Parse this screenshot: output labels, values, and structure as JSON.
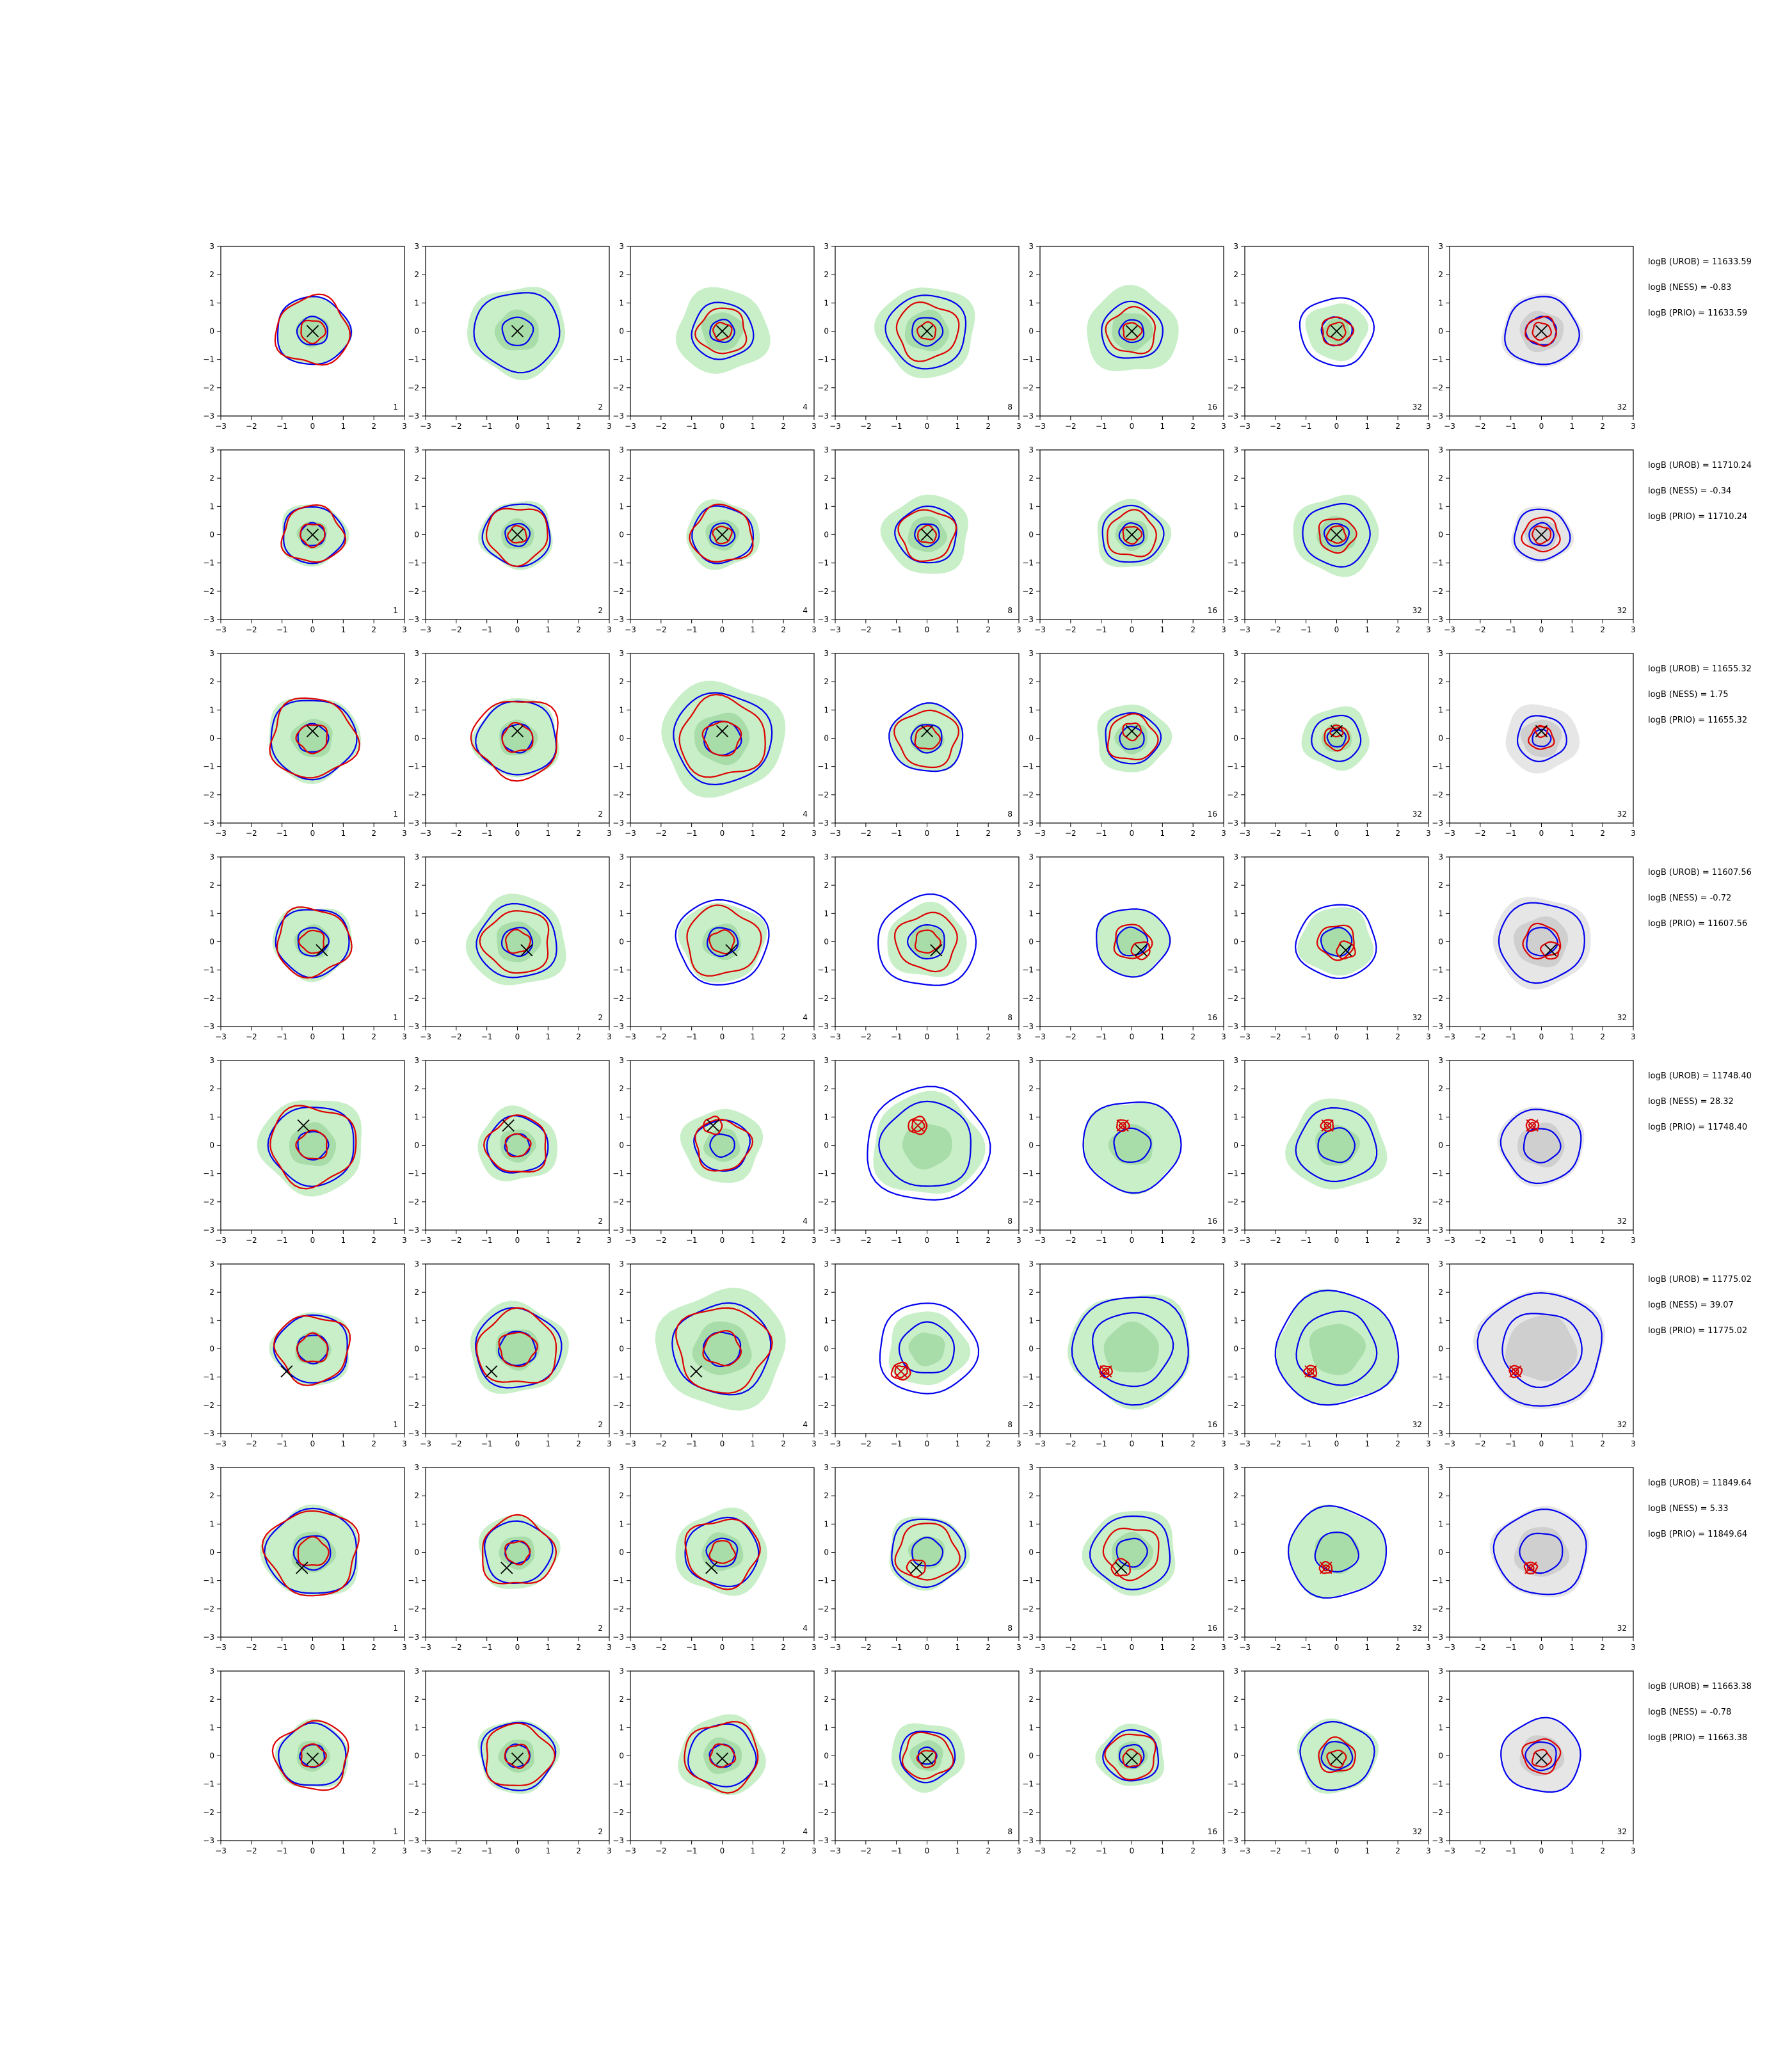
{
  "colors": {
    "fill_green": "#c8efc8",
    "fill_green_dark": "#a8dca8",
    "fill_gray": "#e6e6e6",
    "fill_gray_dark": "#cfcfcf",
    "contour_blue": "#0000ee",
    "contour_red": "#dd0000",
    "marker": "#000000",
    "marker_red": "#cc0000"
  },
  "chart_data": {
    "type": "contour-grid",
    "rows": 8,
    "cols": 7,
    "column_labels": [
      "1",
      "2",
      "4",
      "8",
      "16",
      "32",
      "32"
    ],
    "xlim": [
      -3,
      3
    ],
    "ylim": [
      -3,
      3
    ],
    "ticks": [
      -3,
      -2,
      -1,
      0,
      1,
      2,
      3
    ],
    "grid": false,
    "rows_data": [
      {
        "annotations": [
          "logB (UROB) = 11633.59",
          "logB (NESS) = -0.83",
          "logB (PRIO) = 11633.59"
        ],
        "marker": [
          0.0,
          0.0
        ],
        "panels": [
          {
            "green": 1.2,
            "blue": [
              1.2,
              0.5
            ],
            "red": [
              1.2,
              0.4
            ]
          },
          {
            "green": 1.6,
            "blue": [
              1.4,
              0.5
            ],
            "red": []
          },
          {
            "green": 1.5,
            "blue": [
              1.0,
              0.4
            ],
            "red": [
              0.8,
              0.3
            ]
          },
          {
            "green": 1.6,
            "blue": [
              1.3,
              0.5
            ],
            "red": [
              1.0,
              0.3
            ]
          },
          {
            "green": 1.5,
            "blue": [
              1.0,
              0.4
            ],
            "red": [
              0.8,
              0.3
            ]
          },
          {
            "green": 1.0,
            "blue": [
              1.2,
              0.5
            ],
            "red": [
              0.5,
              0.3
            ]
          },
          {
            "gray": 1.3,
            "blue": [
              1.2,
              0.5
            ],
            "red": [
              0.5,
              0.3
            ]
          }
        ]
      },
      {
        "annotations": [
          "logB (UROB) = 11710.24",
          "logB (NESS) = -0.34",
          "logB (PRIO) = 11710.24"
        ],
        "marker": [
          0.0,
          0.0
        ],
        "panels": [
          {
            "green": 1.1,
            "blue": [
              1.0,
              0.4
            ],
            "red": [
              1.0,
              0.4
            ]
          },
          {
            "green": 1.2,
            "blue": [
              1.1,
              0.4
            ],
            "red": [
              1.0,
              0.3
            ]
          },
          {
            "green": 1.2,
            "blue": [
              1.0,
              0.4
            ],
            "red": [
              1.0,
              0.3
            ]
          },
          {
            "green": 1.4,
            "blue": [
              1.0,
              0.4
            ],
            "red": [
              0.9,
              0.3
            ]
          },
          {
            "green": 1.2,
            "blue": [
              1.0,
              0.4
            ],
            "red": [
              0.8,
              0.3
            ]
          },
          {
            "green": 1.4,
            "blue": [
              1.1,
              0.4
            ],
            "red": [
              0.6,
              0.3
            ]
          },
          {
            "gray": 1.0,
            "blue": [
              0.9,
              0.4
            ],
            "red": [
              0.6,
              0.3
            ]
          }
        ]
      },
      {
        "annotations": [
          "logB (UROB) = 11655.32",
          "logB (NESS) = 1.75",
          "logB (PRIO) = 11655.32"
        ],
        "marker": [
          0.0,
          0.25
        ],
        "panels": [
          {
            "green": 1.5,
            "blue": [
              1.4,
              0.5
            ],
            "red": [
              1.4,
              0.5
            ]
          },
          {
            "green": 1.4,
            "blue": [
              1.3,
              0.5
            ],
            "red": [
              1.4,
              0.5
            ]
          },
          {
            "green": 2.0,
            "blue": [
              1.6,
              0.6
            ],
            "red": [
              1.4,
              0.6
            ]
          },
          {
            "green": 1.2,
            "blue": [
              1.2,
              0.5
            ],
            "red": [
              1.0,
              0.4
            ]
          },
          {
            "green": 1.2,
            "blue": [
              0.9,
              0.4
            ],
            "red": [
              0.8,
              0.3
            ]
          },
          {
            "green": 1.1,
            "blue": [
              0.8,
              0.3
            ],
            "red": [
              0.4,
              0.2
            ]
          },
          {
            "gray": 1.2,
            "blue": [
              0.8,
              0.3
            ],
            "red": [
              0.4,
              0.2
            ]
          }
        ]
      },
      {
        "annotations": [
          "logB (UROB) = 11607.56",
          "logB (NESS) = -0.72",
          "logB (PRIO) = 11607.56"
        ],
        "marker": [
          0.3,
          -0.3
        ],
        "panels": [
          {
            "green": 1.3,
            "blue": [
              1.2,
              0.5
            ],
            "red": [
              1.2,
              0.4
            ]
          },
          {
            "green": 1.6,
            "blue": [
              1.3,
              0.5
            ],
            "red": [
              1.1,
              0.4
            ]
          },
          {
            "green": 1.4,
            "blue": [
              1.5,
              0.5
            ],
            "red": [
              1.2,
              0.4
            ]
          },
          {
            "green": 1.3,
            "blue": [
              1.6,
              0.6
            ],
            "red": [
              1.0,
              0.4
            ]
          },
          {
            "green": 1.2,
            "blue": [
              1.2,
              0.5
            ],
            "red": [
              0.6,
              0.3
            ]
          },
          {
            "green": 1.2,
            "blue": [
              1.3,
              0.5
            ],
            "red": [
              0.6,
              0.3
            ]
          },
          {
            "gray": 1.6,
            "blue": [
              1.4,
              0.5
            ],
            "red": [
              0.6,
              0.3
            ]
          }
        ]
      },
      {
        "annotations": [
          "logB (UROB) = 11748.40",
          "logB (NESS) = 28.32",
          "logB (PRIO) = 11748.40"
        ],
        "marker": [
          -0.3,
          0.7
        ],
        "panels": [
          {
            "green": 1.7,
            "blue": [
              1.4,
              0.5
            ],
            "red": [
              1.4,
              0.5
            ]
          },
          {
            "green": 1.3,
            "blue": [
              1.0,
              0.4
            ],
            "red": [
              1.0,
              0.4
            ]
          },
          {
            "green": 1.3,
            "blue": [
              0.9,
              0.4
            ],
            "red": [
              0.9,
              0.3
            ]
          },
          {
            "green": 1.8,
            "blue": [
              2.0,
              1.5
            ],
            "red": [
              0.3,
              0.2
            ]
          },
          {
            "green": 1.6,
            "blue": [
              1.6,
              0.6
            ],
            "red": [
              0.2,
              0.1
            ]
          },
          {
            "green": 1.6,
            "blue": [
              1.3,
              0.6
            ],
            "red": [
              0.2,
              0.1
            ]
          },
          {
            "gray": 1.4,
            "blue": [
              1.3,
              0.6
            ],
            "red": [
              0.2,
              0.1
            ]
          }
        ]
      },
      {
        "annotations": [
          "logB (UROB) = 11775.02",
          "logB (NESS) = 39.07",
          "logB (PRIO) = 11775.02"
        ],
        "marker": [
          -0.85,
          -0.8
        ],
        "panels": [
          {
            "green": 1.3,
            "blue": [
              1.2,
              0.5
            ],
            "red": [
              1.2,
              0.5
            ]
          },
          {
            "green": 1.6,
            "blue": [
              1.4,
              0.6
            ],
            "red": [
              1.3,
              0.6
            ]
          },
          {
            "green": 2.1,
            "blue": [
              1.6,
              0.6
            ],
            "red": [
              1.5,
              0.6
            ]
          },
          {
            "green": 1.3,
            "blue": [
              1.6,
              0.9
            ],
            "red": [
              0.3,
              0.2
            ]
          },
          {
            "green": 2.0,
            "blue": [
              1.9,
              1.3
            ],
            "red": [
              0.2,
              0.1
            ]
          },
          {
            "green": 2.0,
            "blue": [
              2.0,
              1.3
            ],
            "red": [
              0.2,
              0.1
            ]
          },
          {
            "gray": 2.1,
            "blue": [
              2.0,
              1.3
            ],
            "red": [
              0.2,
              0.1
            ]
          }
        ]
      },
      {
        "annotations": [
          "logB (UROB) = 11849.64",
          "logB (NESS) = 5.33",
          "logB (PRIO) = 11849.64"
        ],
        "marker": [
          -0.35,
          -0.55
        ],
        "panels": [
          {
            "green": 1.6,
            "blue": [
              1.5,
              0.6
            ],
            "red": [
              1.5,
              0.5
            ]
          },
          {
            "green": 1.3,
            "blue": [
              1.1,
              0.4
            ],
            "red": [
              1.2,
              0.4
            ]
          },
          {
            "green": 1.5,
            "blue": [
              1.2,
              0.5
            ],
            "red": [
              1.2,
              0.4
            ]
          },
          {
            "green": 1.3,
            "blue": [
              1.2,
              0.5
            ],
            "red": [
              1.0,
              0.3
            ]
          },
          {
            "green": 1.5,
            "blue": [
              1.3,
              0.5
            ],
            "red": [
              0.9,
              0.3
            ]
          },
          {
            "green": 1.6,
            "blue": [
              1.6,
              0.7
            ],
            "red": [
              0.2,
              0.1
            ]
          },
          {
            "gray": 1.6,
            "blue": [
              1.5,
              0.7
            ],
            "red": [
              0.2,
              0.1
            ]
          }
        ]
      },
      {
        "annotations": [
          "logB (UROB) = 11663.38",
          "logB (NESS) = -0.78",
          "logB (PRIO) = 11663.38"
        ],
        "marker": [
          0.0,
          -0.1
        ],
        "panels": [
          {
            "green": 1.2,
            "blue": [
              1.1,
              0.4
            ],
            "red": [
              1.2,
              0.4
            ]
          },
          {
            "green": 1.3,
            "blue": [
              1.2,
              0.4
            ],
            "red": [
              1.1,
              0.4
            ]
          },
          {
            "green": 1.4,
            "blue": [
              1.1,
              0.4
            ],
            "red": [
              1.2,
              0.4
            ]
          },
          {
            "green": 1.2,
            "blue": [
              0.9,
              0.3
            ],
            "red": [
              0.8,
              0.3
            ]
          },
          {
            "green": 1.1,
            "blue": [
              0.9,
              0.4
            ],
            "red": [
              0.8,
              0.3
            ]
          },
          {
            "green": 1.3,
            "blue": [
              1.2,
              0.5
            ],
            "red": [
              0.6,
              0.3
            ]
          },
          {
            "gray": 1.3,
            "blue": [
              1.3,
              0.5
            ],
            "red": [
              0.6,
              0.3
            ]
          }
        ]
      }
    ]
  }
}
